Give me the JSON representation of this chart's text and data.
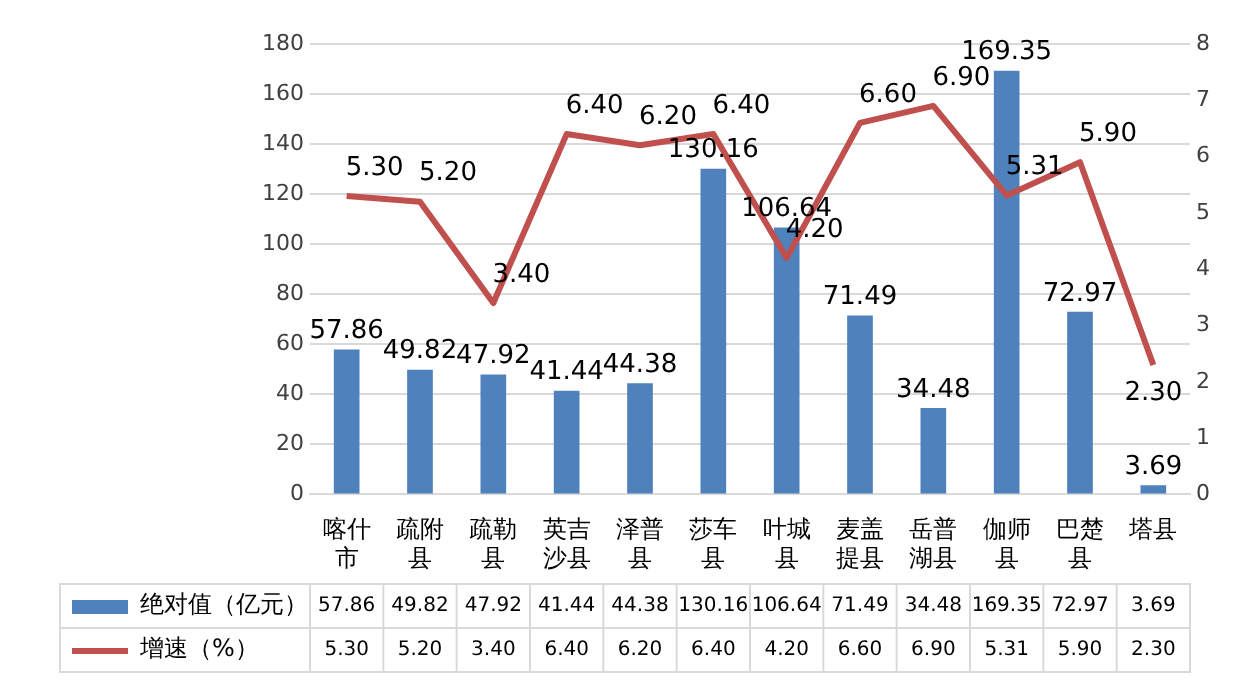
{
  "chart_data": {
    "type": "bar",
    "categories": [
      "喀什市",
      "疏附县",
      "疏勒县",
      "英吉沙县",
      "泽普县",
      "莎车县",
      "叶城县",
      "麦盖提县",
      "岳普湖县",
      "伽师县",
      "巴楚县",
      "塔县"
    ],
    "series": [
      {
        "name": "绝对值（亿元）",
        "color": "#4f81bd",
        "values": [
          57.86,
          49.82,
          47.92,
          41.44,
          44.38,
          130.16,
          106.64,
          71.49,
          34.48,
          169.35,
          72.97,
          3.69
        ],
        "value_labels": [
          "57.86",
          "49.82",
          "47.92",
          "41.44",
          "44.38",
          "130.16",
          "106.64",
          "71.49",
          "34.48",
          "169.35",
          "72.97",
          "3.69"
        ]
      },
      {
        "name": "增速（%）",
        "type": "line",
        "axis": "y2",
        "color": "#c0504d",
        "values": [
          5.3,
          5.2,
          3.4,
          6.4,
          6.2,
          6.4,
          4.2,
          6.6,
          6.9,
          5.31,
          5.9,
          2.3
        ],
        "value_labels": [
          "5.30",
          "5.20",
          "3.40",
          "6.40",
          "6.20",
          "6.40",
          "4.20",
          "6.60",
          "6.90",
          "5.31",
          "5.90",
          "2.30"
        ]
      }
    ],
    "ylim": [
      0,
      180
    ],
    "yticks": [
      0,
      20,
      40,
      60,
      80,
      100,
      120,
      140,
      160,
      180
    ],
    "y2lim": [
      0,
      8
    ],
    "y2ticks": [
      0,
      1,
      2,
      3,
      4,
      5,
      6,
      7,
      8
    ],
    "grid": "y",
    "legend": "bottom",
    "marker": "none"
  }
}
